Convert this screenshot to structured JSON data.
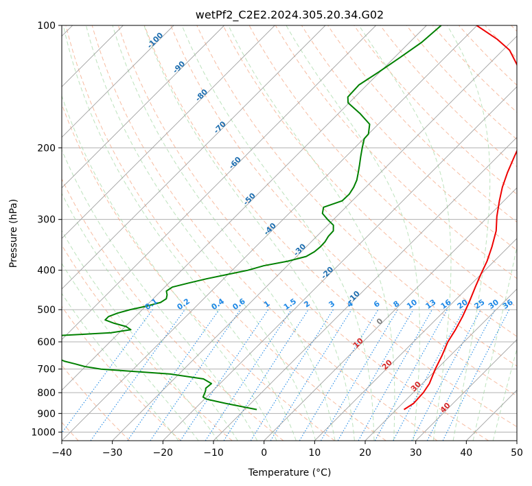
{
  "chart_data": {
    "type": "line",
    "title": "wetPf2_C2E2.2024.305.20.34.G02",
    "xlabel": "Temperature (°C)",
    "ylabel": "Pressure (hPa)",
    "xlim": [
      -40,
      50
    ],
    "ylim": [
      1050,
      100
    ],
    "y_scale": "log",
    "x_ticks": [
      "−40",
      "−30",
      "−20",
      "−10",
      "0",
      "10",
      "20",
      "30",
      "40",
      "50"
    ],
    "x_tick_values": [
      -40,
      -30,
      -20,
      -10,
      0,
      10,
      20,
      30,
      40,
      50
    ],
    "y_ticks": [
      "100",
      "200",
      "300",
      "400",
      "500",
      "600",
      "700",
      "800",
      "900",
      "1000"
    ],
    "y_tick_values": [
      100,
      200,
      300,
      400,
      500,
      600,
      700,
      800,
      900,
      1000
    ],
    "grid": true,
    "colors": {
      "temperature": "#ee0000",
      "dewpoint": "#008000",
      "isotherm": "#a0a0a0",
      "dry_adiabat": "#f4a582",
      "moist_adiabat": "#a6d8a6",
      "mixing_ratio": "#1e88e5",
      "isotherm_label": "#1f6fb0",
      "moist_label": "#d62728"
    },
    "series": [
      {
        "key": "temperature",
        "p": [
          880,
          850,
          800,
          760,
          700,
          650,
          600,
          560,
          520,
          480,
          440,
          410,
          380,
          350,
          320,
          295,
          270,
          250,
          230,
          210,
          190,
          175,
          165,
          155,
          145,
          135,
          125,
          115,
          108,
          100
        ],
        "t": [
          21.5,
          22.2,
          22.0,
          21.4,
          19.7,
          18.4,
          16.8,
          15.9,
          14.7,
          13.2,
          11.4,
          10.0,
          8.6,
          6.7,
          4.4,
          1.7,
          -0.9,
          -3.0,
          -4.9,
          -6.7,
          -8.6,
          -10.7,
          -12.6,
          -15.1,
          -17.7,
          -21.0,
          -24.3,
          -28.7,
          -33.4,
          -40.1
        ]
      },
      {
        "key": "dewpoint",
        "p": [
          880,
          850,
          830,
          820,
          800,
          790,
          780,
          760,
          740,
          720,
          700,
          690,
          680,
          670,
          660,
          640,
          620,
          600,
          590,
          580,
          570,
          560,
          550,
          540,
          530,
          520,
          510,
          500,
          490,
          480,
          470,
          460,
          450,
          440,
          430,
          420,
          410,
          400,
          390,
          380,
          370,
          360,
          350,
          340,
          330,
          320,
          310,
          300,
          290,
          280,
          270,
          260,
          250,
          240,
          230,
          220,
          210,
          200,
          190,
          185,
          175,
          165,
          155,
          150,
          140,
          130,
          120,
          110,
          100
        ],
        "t": [
          -7.6,
          -15.0,
          -19.6,
          -20.7,
          -21.2,
          -21.5,
          -21.9,
          -21.7,
          -24.2,
          -31.7,
          -46.4,
          -50.1,
          -52.5,
          -55.1,
          -56.9,
          -62.7,
          -68.2,
          -73.6,
          -72.3,
          -62.4,
          -51.6,
          -48.3,
          -49.9,
          -52.9,
          -55.3,
          -55.3,
          -54.2,
          -52.4,
          -49.8,
          -47.8,
          -47.4,
          -48.0,
          -48.9,
          -48.5,
          -46.1,
          -43.4,
          -40.2,
          -36.9,
          -34.7,
          -30.8,
          -28.1,
          -27.4,
          -27.2,
          -27.3,
          -27.7,
          -27.8,
          -28.9,
          -31.2,
          -33.4,
          -34.4,
          -32.0,
          -31.9,
          -32.4,
          -33.2,
          -34.4,
          -35.7,
          -37.1,
          -38.5,
          -39.9,
          -40.0,
          -41.7,
          -45.6,
          -50.2,
          -51.4,
          -51.6,
          -50.2,
          -48.9,
          -47.6,
          -47.1
        ]
      }
    ],
    "isotherm_labels": [
      "-100",
      "-90",
      "-80",
      "-70",
      "-60",
      "-50",
      "-40",
      "-30",
      "-20",
      "-10",
      "0"
    ],
    "isotherm_label_values": [
      -100,
      -90,
      -80,
      -70,
      -60,
      -50,
      -40,
      -30,
      -20,
      -10,
      0
    ],
    "isotherm_label_pressures": [
      110,
      128,
      150,
      180,
      220,
      270,
      320,
      360,
      410,
      470,
      540
    ],
    "mixing_ratio_labels": [
      "0.1",
      "0.2",
      "0.4",
      "0.6",
      "1",
      "1.5",
      "2",
      "3",
      "4",
      "6",
      "8",
      "10",
      "13",
      "16",
      "20",
      "25",
      "30",
      "36"
    ],
    "mixing_ratio_values": [
      0.1,
      0.2,
      0.4,
      0.6,
      1,
      1.5,
      2,
      3,
      4,
      6,
      8,
      10,
      13,
      16,
      20,
      25,
      30,
      36
    ],
    "moist_labels": [
      "10",
      "20",
      "30",
      "40"
    ],
    "moist_label_values": [
      10,
      20,
      30,
      40
    ],
    "moist_label_pressures": [
      610,
      690,
      780,
      880
    ]
  }
}
